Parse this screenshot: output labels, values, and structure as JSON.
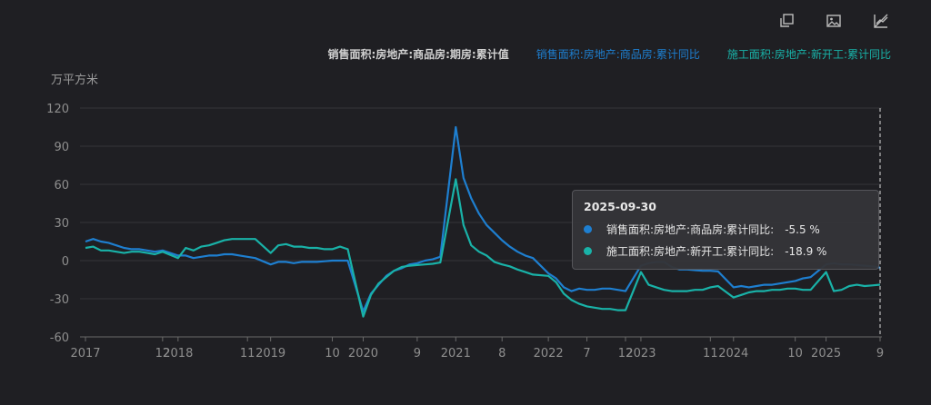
{
  "toolbar": {
    "icons": [
      "copy-icon",
      "image-icon",
      "chart-toggle-icon"
    ]
  },
  "legend": [
    {
      "label": "销售面积:房地产:商品房:期房:累计值",
      "color": "#d0d0d0"
    },
    {
      "label": "销售面积:房地产:商品房:累计同比",
      "color": "#1e7fd0"
    },
    {
      "label": "施工面积:房地产:新开工:累计同比",
      "color": "#19b2a8"
    }
  ],
  "unit_label": "万平方米",
  "tooltip": {
    "date": "2025-09-30",
    "rows": [
      {
        "name": "销售面积:房地产:商品房:累计同比:",
        "value": "-5.5 %",
        "color": "#1e7fd0"
      },
      {
        "name": "施工面积:房地产:新开工:累计同比:",
        "value": "-18.9 %",
        "color": "#19b2a8"
      }
    ]
  },
  "chart_data": {
    "type": "line",
    "ylabel": "万平方米",
    "ylim": [
      -60,
      120
    ],
    "yticks": [
      120,
      90,
      60,
      30,
      0,
      -30,
      -60
    ],
    "grid": true,
    "x_ticks": [
      "2017",
      "12",
      "2018",
      "11",
      "2019",
      "10",
      "2020",
      "9",
      "2021",
      "8",
      "2022",
      "7",
      "12",
      "2023",
      "11",
      "2024",
      "10",
      "2025",
      "9"
    ],
    "x_range": [
      "2017-02",
      "2025-09"
    ],
    "series": [
      {
        "name": "销售面积:房地产:商品房:累计同比",
        "color": "#1e7fd0",
        "points": [
          [
            "2017-02",
            15
          ],
          [
            "2017-03",
            17
          ],
          [
            "2017-04",
            15
          ],
          [
            "2017-05",
            14
          ],
          [
            "2017-06",
            12
          ],
          [
            "2017-07",
            10
          ],
          [
            "2017-08",
            9
          ],
          [
            "2017-09",
            9
          ],
          [
            "2017-10",
            8
          ],
          [
            "2017-11",
            7
          ],
          [
            "2017-12",
            8
          ],
          [
            "2018-02",
            4
          ],
          [
            "2018-03",
            4
          ],
          [
            "2018-04",
            2
          ],
          [
            "2018-05",
            3
          ],
          [
            "2018-06",
            4
          ],
          [
            "2018-07",
            4
          ],
          [
            "2018-08",
            5
          ],
          [
            "2018-09",
            5
          ],
          [
            "2018-10",
            4
          ],
          [
            "2018-11",
            3
          ],
          [
            "2018-12",
            2
          ],
          [
            "2019-02",
            -3
          ],
          [
            "2019-03",
            -1
          ],
          [
            "2019-04",
            -1
          ],
          [
            "2019-05",
            -2
          ],
          [
            "2019-06",
            -1
          ],
          [
            "2019-07",
            -1
          ],
          [
            "2019-08",
            -1
          ],
          [
            "2019-09",
            -0.5
          ],
          [
            "2019-10",
            0
          ],
          [
            "2019-11",
            0
          ],
          [
            "2019-12",
            0
          ],
          [
            "2020-02",
            -40
          ],
          [
            "2020-03",
            -26
          ],
          [
            "2020-04",
            -19
          ],
          [
            "2020-05",
            -12
          ],
          [
            "2020-06",
            -8
          ],
          [
            "2020-07",
            -6
          ],
          [
            "2020-08",
            -3
          ],
          [
            "2020-09",
            -2
          ],
          [
            "2020-10",
            0
          ],
          [
            "2020-11",
            1
          ],
          [
            "2020-12",
            3
          ],
          [
            "2021-02",
            105
          ],
          [
            "2021-03",
            65
          ],
          [
            "2021-04",
            49
          ],
          [
            "2021-05",
            37
          ],
          [
            "2021-06",
            28
          ],
          [
            "2021-07",
            22
          ],
          [
            "2021-08",
            16
          ],
          [
            "2021-09",
            11
          ],
          [
            "2021-10",
            7
          ],
          [
            "2021-11",
            4
          ],
          [
            "2021-12",
            2
          ],
          [
            "2022-02",
            -10
          ],
          [
            "2022-03",
            -14
          ],
          [
            "2022-04",
            -21
          ],
          [
            "2022-05",
            -24
          ],
          [
            "2022-06",
            -22
          ],
          [
            "2022-07",
            -23
          ],
          [
            "2022-08",
            -23
          ],
          [
            "2022-09",
            -22
          ],
          [
            "2022-10",
            -22
          ],
          [
            "2022-11",
            -23
          ],
          [
            "2022-12",
            -24
          ],
          [
            "2023-02",
            -4
          ],
          [
            "2023-03",
            -2
          ],
          [
            "2023-04",
            -1
          ],
          [
            "2023-05",
            -1
          ],
          [
            "2023-06",
            -5
          ],
          [
            "2023-07",
            -7
          ],
          [
            "2023-08",
            -7
          ],
          [
            "2023-09",
            -7.5
          ],
          [
            "2023-10",
            -8
          ],
          [
            "2023-11",
            -8
          ],
          [
            "2023-12",
            -8.5
          ],
          [
            "2024-02",
            -21
          ],
          [
            "2024-03",
            -20
          ],
          [
            "2024-04",
            -21
          ],
          [
            "2024-05",
            -20
          ],
          [
            "2024-06",
            -19
          ],
          [
            "2024-07",
            -19
          ],
          [
            "2024-08",
            -18
          ],
          [
            "2024-09",
            -17
          ],
          [
            "2024-10",
            -16
          ],
          [
            "2024-11",
            -14
          ],
          [
            "2024-12",
            -13
          ],
          [
            "2025-02",
            -3
          ],
          [
            "2025-03",
            -2
          ],
          [
            "2025-04",
            -3
          ],
          [
            "2025-05",
            -3
          ],
          [
            "2025-06",
            -3.5
          ],
          [
            "2025-07",
            -4
          ],
          [
            "2025-08",
            -4.5
          ],
          [
            "2025-09",
            -5.5
          ]
        ]
      },
      {
        "name": "施工面积:房地产:新开工:累计同比",
        "color": "#19b2a8",
        "points": [
          [
            "2017-02",
            10
          ],
          [
            "2017-03",
            11
          ],
          [
            "2017-04",
            8
          ],
          [
            "2017-05",
            8
          ],
          [
            "2017-06",
            7
          ],
          [
            "2017-07",
            6
          ],
          [
            "2017-08",
            7
          ],
          [
            "2017-09",
            7
          ],
          [
            "2017-10",
            6
          ],
          [
            "2017-11",
            5
          ],
          [
            "2017-12",
            7
          ],
          [
            "2018-02",
            2
          ],
          [
            "2018-03",
            10
          ],
          [
            "2018-04",
            8
          ],
          [
            "2018-05",
            11
          ],
          [
            "2018-06",
            12
          ],
          [
            "2018-07",
            14
          ],
          [
            "2018-08",
            16
          ],
          [
            "2018-09",
            17
          ],
          [
            "2018-10",
            17
          ],
          [
            "2018-11",
            17
          ],
          [
            "2018-12",
            17
          ],
          [
            "2019-02",
            6
          ],
          [
            "2019-03",
            12
          ],
          [
            "2019-04",
            13
          ],
          [
            "2019-05",
            11
          ],
          [
            "2019-06",
            11
          ],
          [
            "2019-07",
            10
          ],
          [
            "2019-08",
            10
          ],
          [
            "2019-09",
            9
          ],
          [
            "2019-10",
            9
          ],
          [
            "2019-11",
            11
          ],
          [
            "2019-12",
            9
          ],
          [
            "2020-02",
            -44
          ],
          [
            "2020-03",
            -27
          ],
          [
            "2020-04",
            -18
          ],
          [
            "2020-05",
            -13
          ],
          [
            "2020-06",
            -8
          ],
          [
            "2020-07",
            -5
          ],
          [
            "2020-08",
            -4
          ],
          [
            "2020-09",
            -3.5
          ],
          [
            "2020-10",
            -3
          ],
          [
            "2020-11",
            -2.5
          ],
          [
            "2020-12",
            -1.5
          ],
          [
            "2021-02",
            64
          ],
          [
            "2021-03",
            28
          ],
          [
            "2021-04",
            12
          ],
          [
            "2021-05",
            7
          ],
          [
            "2021-06",
            4
          ],
          [
            "2021-07",
            -1
          ],
          [
            "2021-08",
            -3
          ],
          [
            "2021-09",
            -4.5
          ],
          [
            "2021-10",
            -7
          ],
          [
            "2021-11",
            -9
          ],
          [
            "2021-12",
            -11
          ],
          [
            "2022-02",
            -12
          ],
          [
            "2022-03",
            -17
          ],
          [
            "2022-04",
            -26
          ],
          [
            "2022-05",
            -31
          ],
          [
            "2022-06",
            -34
          ],
          [
            "2022-07",
            -36
          ],
          [
            "2022-08",
            -37
          ],
          [
            "2022-09",
            -38
          ],
          [
            "2022-10",
            -38
          ],
          [
            "2022-11",
            -39
          ],
          [
            "2022-12",
            -39
          ],
          [
            "2023-02",
            -9
          ],
          [
            "2023-03",
            -19
          ],
          [
            "2023-04",
            -21
          ],
          [
            "2023-05",
            -23
          ],
          [
            "2023-06",
            -24
          ],
          [
            "2023-07",
            -24
          ],
          [
            "2023-08",
            -24
          ],
          [
            "2023-09",
            -23
          ],
          [
            "2023-10",
            -23
          ],
          [
            "2023-11",
            -21
          ],
          [
            "2023-12",
            -20
          ],
          [
            "2024-02",
            -29
          ],
          [
            "2024-03",
            -27
          ],
          [
            "2024-04",
            -25
          ],
          [
            "2024-05",
            -24
          ],
          [
            "2024-06",
            -24
          ],
          [
            "2024-07",
            -23
          ],
          [
            "2024-08",
            -23
          ],
          [
            "2024-09",
            -22
          ],
          [
            "2024-10",
            -22
          ],
          [
            "2024-11",
            -23
          ],
          [
            "2024-12",
            -23
          ],
          [
            "2025-02",
            -9
          ],
          [
            "2025-03",
            -24
          ],
          [
            "2025-04",
            -23
          ],
          [
            "2025-05",
            -20
          ],
          [
            "2025-06",
            -19
          ],
          [
            "2025-07",
            -20
          ],
          [
            "2025-08",
            -19.5
          ],
          [
            "2025-09",
            -18.9
          ]
        ]
      }
    ]
  }
}
